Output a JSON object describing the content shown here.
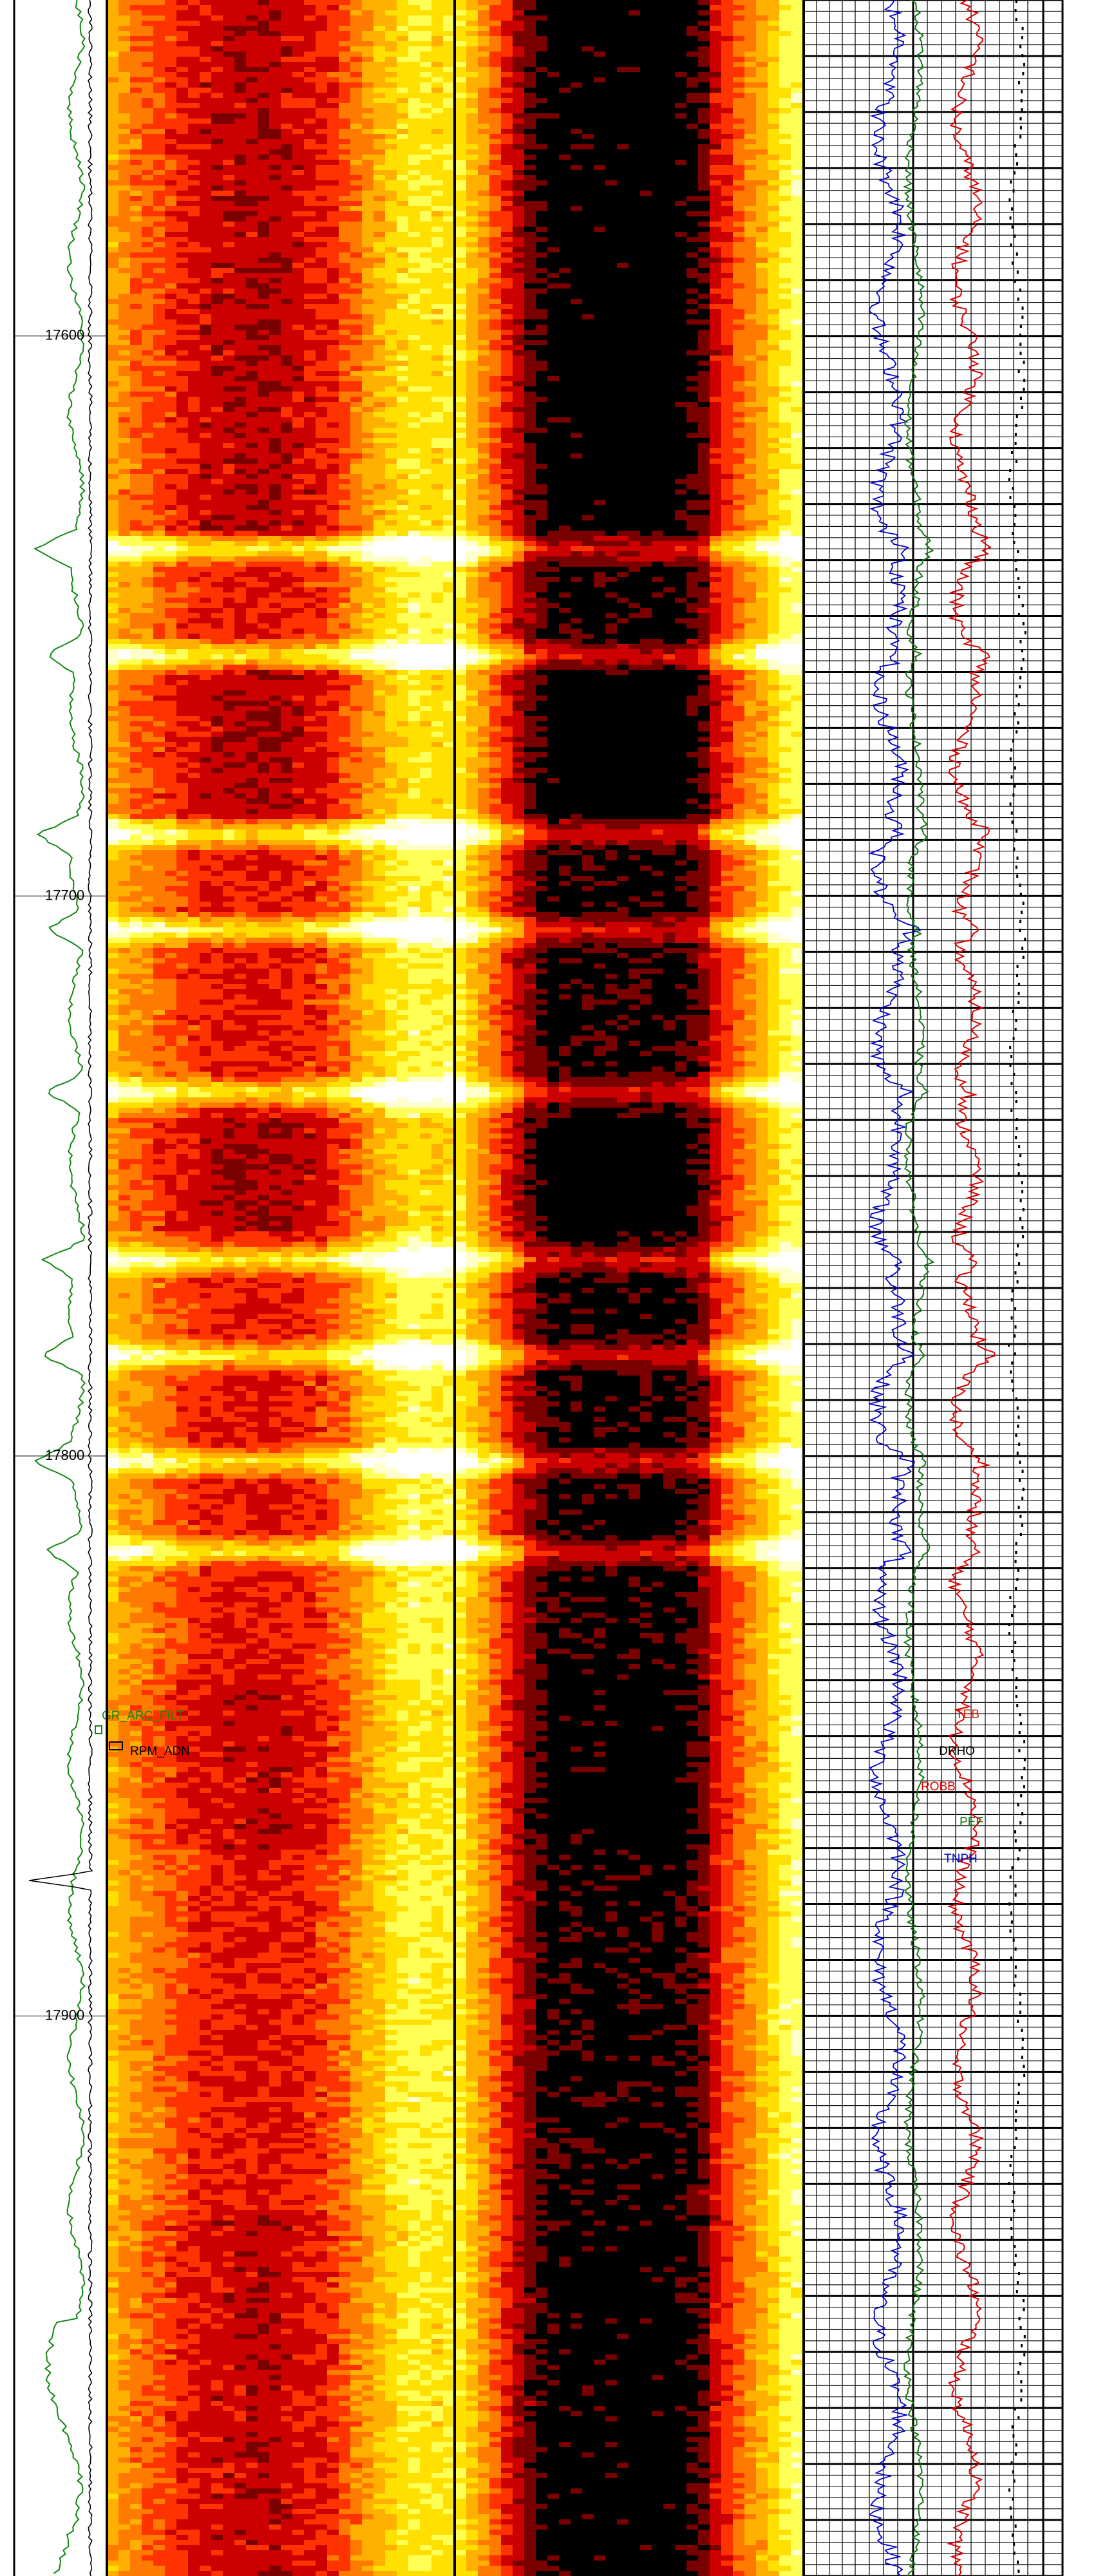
{
  "log": {
    "depth_labels": [
      "17600",
      "17700",
      "17800",
      "17900"
    ],
    "depth_label_values": [
      17600,
      17700,
      17800,
      17900
    ],
    "depth_range": [
      17540,
      18000
    ],
    "curve_labels": {
      "gr": "GR_ARC_FILT",
      "rpm": "RPM_ADN",
      "teb": "TEB",
      "drho": "DRHO",
      "rhob": "ROBB",
      "pef": "PEF",
      "tnph": "TNPH"
    },
    "colors": {
      "gr": "#118811",
      "rpm": "#000000",
      "teb": "#cc2200",
      "drho": "#000000",
      "rhob": "#dd0000",
      "pef": "#117711",
      "tnph": "#0000cc",
      "dots": "#000000",
      "track_border": "#000000",
      "image_palette": [
        "#000000",
        "#7a0000",
        "#cc0000",
        "#ff3300",
        "#ff7a00",
        "#ffb000",
        "#ffe000",
        "#ffff55",
        "#ffffcc",
        "#ffffff"
      ]
    },
    "bright_bands": [
      17638,
      17657,
      17689,
      17706,
      17735,
      17765,
      17782,
      17801,
      17817
    ],
    "dark_zones": [
      {
        "from": 17540,
        "to": 17592,
        "level": 0.35
      },
      {
        "from": 17592,
        "to": 17636,
        "level": 0.4
      },
      {
        "from": 17660,
        "to": 17686,
        "level": 0.45
      },
      {
        "from": 17740,
        "to": 17760,
        "level": 0.5
      },
      {
        "from": 17840,
        "to": 17870,
        "level": 0.3
      },
      {
        "from": 17935,
        "to": 18000,
        "level": 0.3
      }
    ]
  }
}
